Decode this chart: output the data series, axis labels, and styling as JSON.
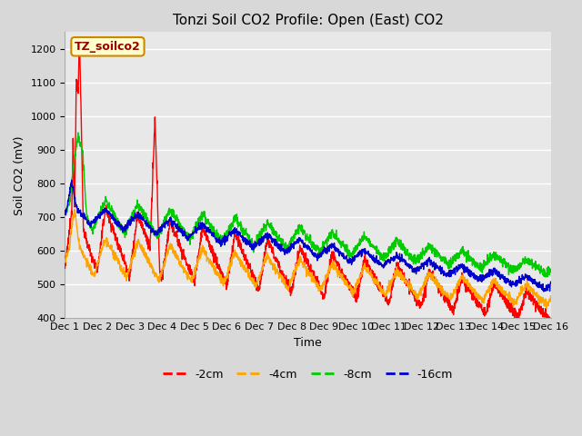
{
  "title": "Tonzi Soil CO2 Profile: Open (East) CO2",
  "ylabel": "Soil CO2 (mV)",
  "xlabel": "Time",
  "ylim": [
    400,
    1250
  ],
  "xlim": [
    0,
    15
  ],
  "xtick_labels": [
    "Dec 1",
    "Dec 2",
    "Dec 3",
    "Dec 4",
    "Dec 5",
    "Dec 6",
    "Dec 7",
    "Dec 8",
    "Dec 9",
    "Dec 10",
    "Dec 11",
    "Dec 12",
    "Dec 13",
    "Dec 14",
    "Dec 15",
    "Dec 16"
  ],
  "series_colors": [
    "#ff0000",
    "#ffa500",
    "#00cc00",
    "#0000cc"
  ],
  "series_labels": [
    "-2cm",
    "-4cm",
    "-8cm",
    "-16cm"
  ],
  "line_width": 1.0,
  "fig_bg_color": "#d8d8d8",
  "plot_bg_color": "#e8e8e8",
  "annotation_text": "TZ_soilco2",
  "annotation_bg": "#ffffcc",
  "annotation_border": "#cc8800",
  "title_fontsize": 11,
  "label_fontsize": 9,
  "tick_fontsize": 8
}
